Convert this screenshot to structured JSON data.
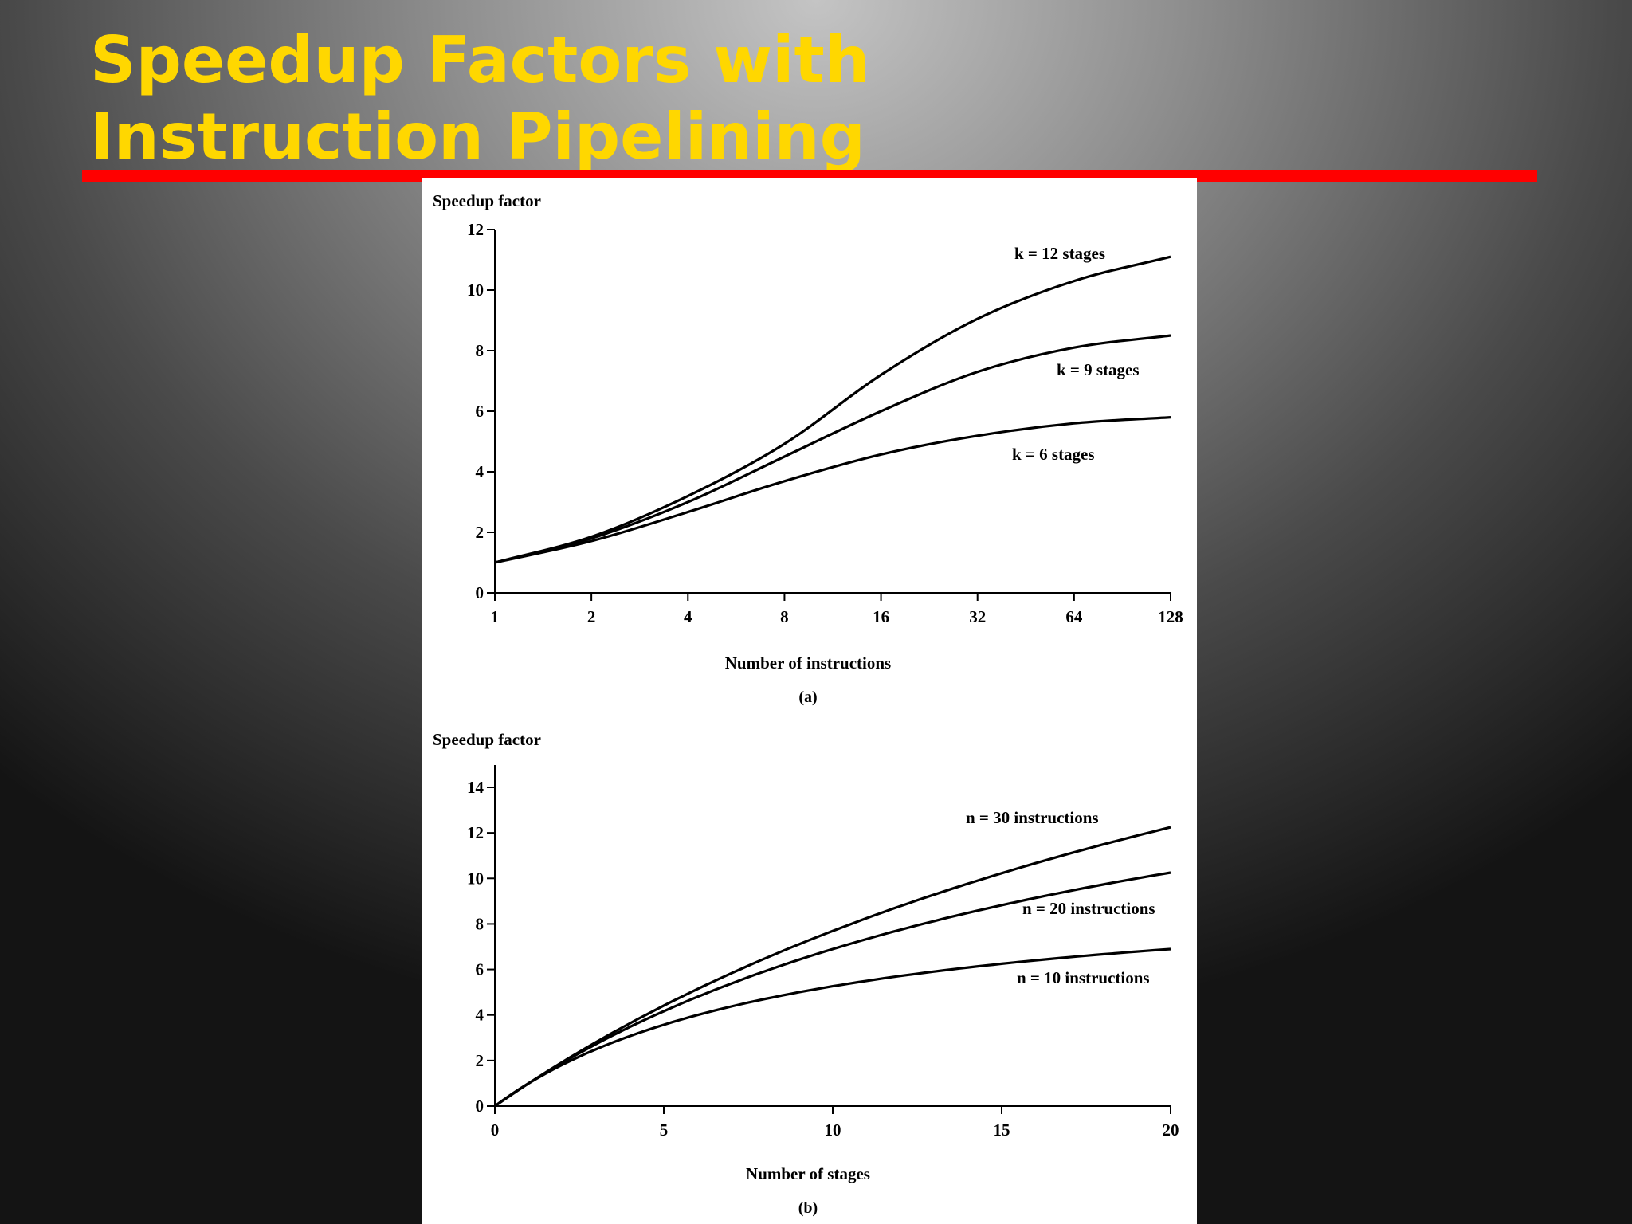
{
  "slide": {
    "title_line1": "Speedup Factors with",
    "title_line2": "Instruction Pipelining",
    "rule_color": "#ff0000",
    "title_color": "#ffd700"
  },
  "chart_data": [
    {
      "type": "line",
      "panel_label": "(a)",
      "ylabel": "Speedup factor",
      "xlabel": "Number of instructions",
      "x_scale": "log2",
      "x_ticks": [
        "1",
        "2",
        "4",
        "8",
        "16",
        "32",
        "64",
        "128"
      ],
      "y_ticks": [
        "0",
        "2",
        "4",
        "6",
        "8",
        "10",
        "12"
      ],
      "xlim": [
        1,
        128
      ],
      "ylim": [
        0,
        12
      ],
      "grid": false,
      "x": [
        1,
        2,
        4,
        8,
        16,
        32,
        64,
        128
      ],
      "series": [
        {
          "name": "k = 12 stages",
          "k": 12,
          "values": [
            1.0,
            1.85,
            3.2,
            4.92,
            7.2,
            9.05,
            10.3,
            11.1
          ]
        },
        {
          "name": "k = 9 stages",
          "k": 9,
          "values": [
            1.0,
            1.8,
            3.0,
            4.5,
            6.0,
            7.3,
            8.1,
            8.5
          ]
        },
        {
          "name": "k = 6 stages",
          "k": 6,
          "values": [
            1.0,
            1.71,
            2.67,
            3.69,
            4.57,
            5.19,
            5.6,
            5.8
          ]
        }
      ]
    },
    {
      "type": "line",
      "panel_label": "(b)",
      "ylabel": "Speedup factor",
      "xlabel": "Number of stages",
      "x_ticks": [
        "0",
        "5",
        "10",
        "15",
        "20"
      ],
      "y_ticks": [
        "0",
        "2",
        "4",
        "6",
        "8",
        "10",
        "12",
        "14"
      ],
      "xlim": [
        0,
        20
      ],
      "ylim": [
        0,
        14
      ],
      "grid": false,
      "series": [
        {
          "name": "n = 30 instructions",
          "n": 30
        },
        {
          "name": "n = 20 instructions",
          "n": 20
        },
        {
          "name": "n = 10 instructions",
          "n": 10
        }
      ]
    }
  ]
}
